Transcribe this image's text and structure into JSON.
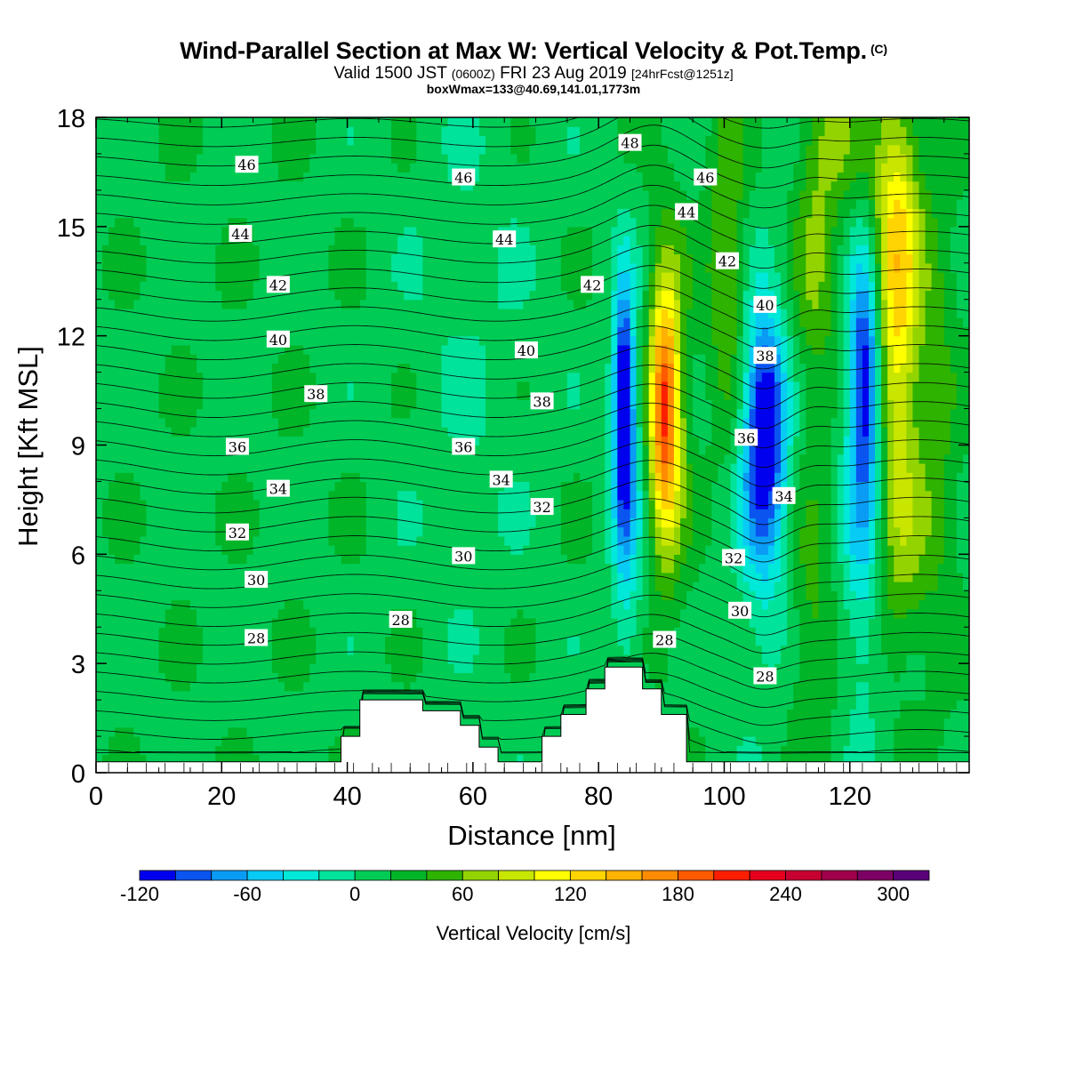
{
  "header": {
    "title": "Wind-Parallel Section at Max W: Vertical Velocity & Pot.Temp.",
    "copyright": "(C)",
    "valid_main": "Valid 1500 JST",
    "valid_utc": "(0600Z)",
    "valid_date": "FRI 23 Aug 2019",
    "forecast": "[24hrFcst@1251z]",
    "boxwmax": "boxWmax=133@40.69,141.01,1773m"
  },
  "chart_data": {
    "type": "heatmap",
    "xlabel": "Distance [nm]",
    "ylabel": "Height [Kft MSL]",
    "xlim": [
      0,
      139
    ],
    "ylim": [
      0,
      18
    ],
    "x_ticks": [
      0,
      20,
      40,
      60,
      80,
      100,
      120
    ],
    "y_ticks": [
      0,
      3,
      6,
      9,
      12,
      15,
      18
    ],
    "colorbar": {
      "label": "Vertical Velocity [cm/s]",
      "range": [
        -120,
        320
      ],
      "step": 20,
      "tick_values": [
        -120,
        -60,
        0,
        60,
        120,
        180,
        240,
        300
      ],
      "colors": [
        "#0000ee",
        "#0a54f0",
        "#0a9cf5",
        "#08cbf5",
        "#00e8d8",
        "#00e39b",
        "#00cc55",
        "#00b528",
        "#2eb300",
        "#93d400",
        "#c8e600",
        "#ffff00",
        "#ffd400",
        "#ffb200",
        "#ff8c00",
        "#ff5a00",
        "#ff1e00",
        "#e6001e",
        "#c80032",
        "#a0004b",
        "#7d0064",
        "#5a0078"
      ]
    },
    "updrafts_cm_s": [
      {
        "x": 90.5,
        "z_kft": 10.0,
        "max": 260
      },
      {
        "x": 127.5,
        "z_kft": 12.5,
        "max": 200
      }
    ],
    "downdrafts_cm_s": [
      {
        "x": 84,
        "z_kft": 10.0,
        "min": -120
      },
      {
        "x": 106.5,
        "z_kft": 9.5,
        "min": -100
      },
      {
        "x": 122.5,
        "z_kft": 11.0,
        "min": -110
      }
    ],
    "terrain_kft": {
      "x": [
        0,
        39,
        39,
        42,
        42,
        52,
        52,
        58,
        58,
        61,
        61,
        64,
        64,
        71,
        71,
        74,
        74,
        78,
        78,
        81,
        81,
        87,
        87,
        90,
        90,
        94,
        94,
        139
      ],
      "z": [
        0.3,
        0.3,
        1.0,
        1.0,
        2.0,
        2.0,
        1.7,
        1.7,
        1.3,
        1.3,
        0.7,
        0.7,
        0.3,
        0.3,
        1.0,
        1.0,
        1.6,
        1.6,
        2.3,
        2.3,
        2.9,
        2.9,
        2.3,
        2.3,
        1.6,
        1.6,
        0.3,
        0.3
      ]
    },
    "isentrope_labels": [
      {
        "text": "46",
        "x": 24,
        "z": 16.7
      },
      {
        "text": "46",
        "x": 58.5,
        "z": 16.35
      },
      {
        "text": "48",
        "x": 85,
        "z": 17.3
      },
      {
        "text": "46",
        "x": 97,
        "z": 16.35
      },
      {
        "text": "44",
        "x": 23,
        "z": 14.8
      },
      {
        "text": "44",
        "x": 65,
        "z": 14.65
      },
      {
        "text": "44",
        "x": 94,
        "z": 15.4
      },
      {
        "text": "42",
        "x": 29,
        "z": 13.4
      },
      {
        "text": "42",
        "x": 79,
        "z": 13.4
      },
      {
        "text": "42",
        "x": 100.5,
        "z": 14.05
      },
      {
        "text": "40",
        "x": 29,
        "z": 11.9
      },
      {
        "text": "40",
        "x": 68.5,
        "z": 11.6
      },
      {
        "text": "40",
        "x": 106.5,
        "z": 12.85
      },
      {
        "text": "38",
        "x": 35,
        "z": 10.4
      },
      {
        "text": "38",
        "x": 71,
        "z": 10.2
      },
      {
        "text": "38",
        "x": 106.5,
        "z": 11.45
      },
      {
        "text": "36",
        "x": 22.5,
        "z": 8.95
      },
      {
        "text": "36",
        "x": 58.5,
        "z": 8.95
      },
      {
        "text": "36",
        "x": 103.5,
        "z": 9.2
      },
      {
        "text": "34",
        "x": 29,
        "z": 7.8
      },
      {
        "text": "34",
        "x": 64.5,
        "z": 8.05
      },
      {
        "text": "34",
        "x": 109.5,
        "z": 7.6
      },
      {
        "text": "32",
        "x": 22.5,
        "z": 6.6
      },
      {
        "text": "32",
        "x": 71,
        "z": 7.3
      },
      {
        "text": "32",
        "x": 101.5,
        "z": 5.9
      },
      {
        "text": "30",
        "x": 25.5,
        "z": 5.3
      },
      {
        "text": "30",
        "x": 58.5,
        "z": 5.95
      },
      {
        "text": "30",
        "x": 102.5,
        "z": 4.45
      },
      {
        "text": "28",
        "x": 25.5,
        "z": 3.7
      },
      {
        "text": "28",
        "x": 48.5,
        "z": 4.2
      },
      {
        "text": "28",
        "x": 90.5,
        "z": 3.65
      },
      {
        "text": "28",
        "x": 106.5,
        "z": 2.65
      }
    ]
  }
}
